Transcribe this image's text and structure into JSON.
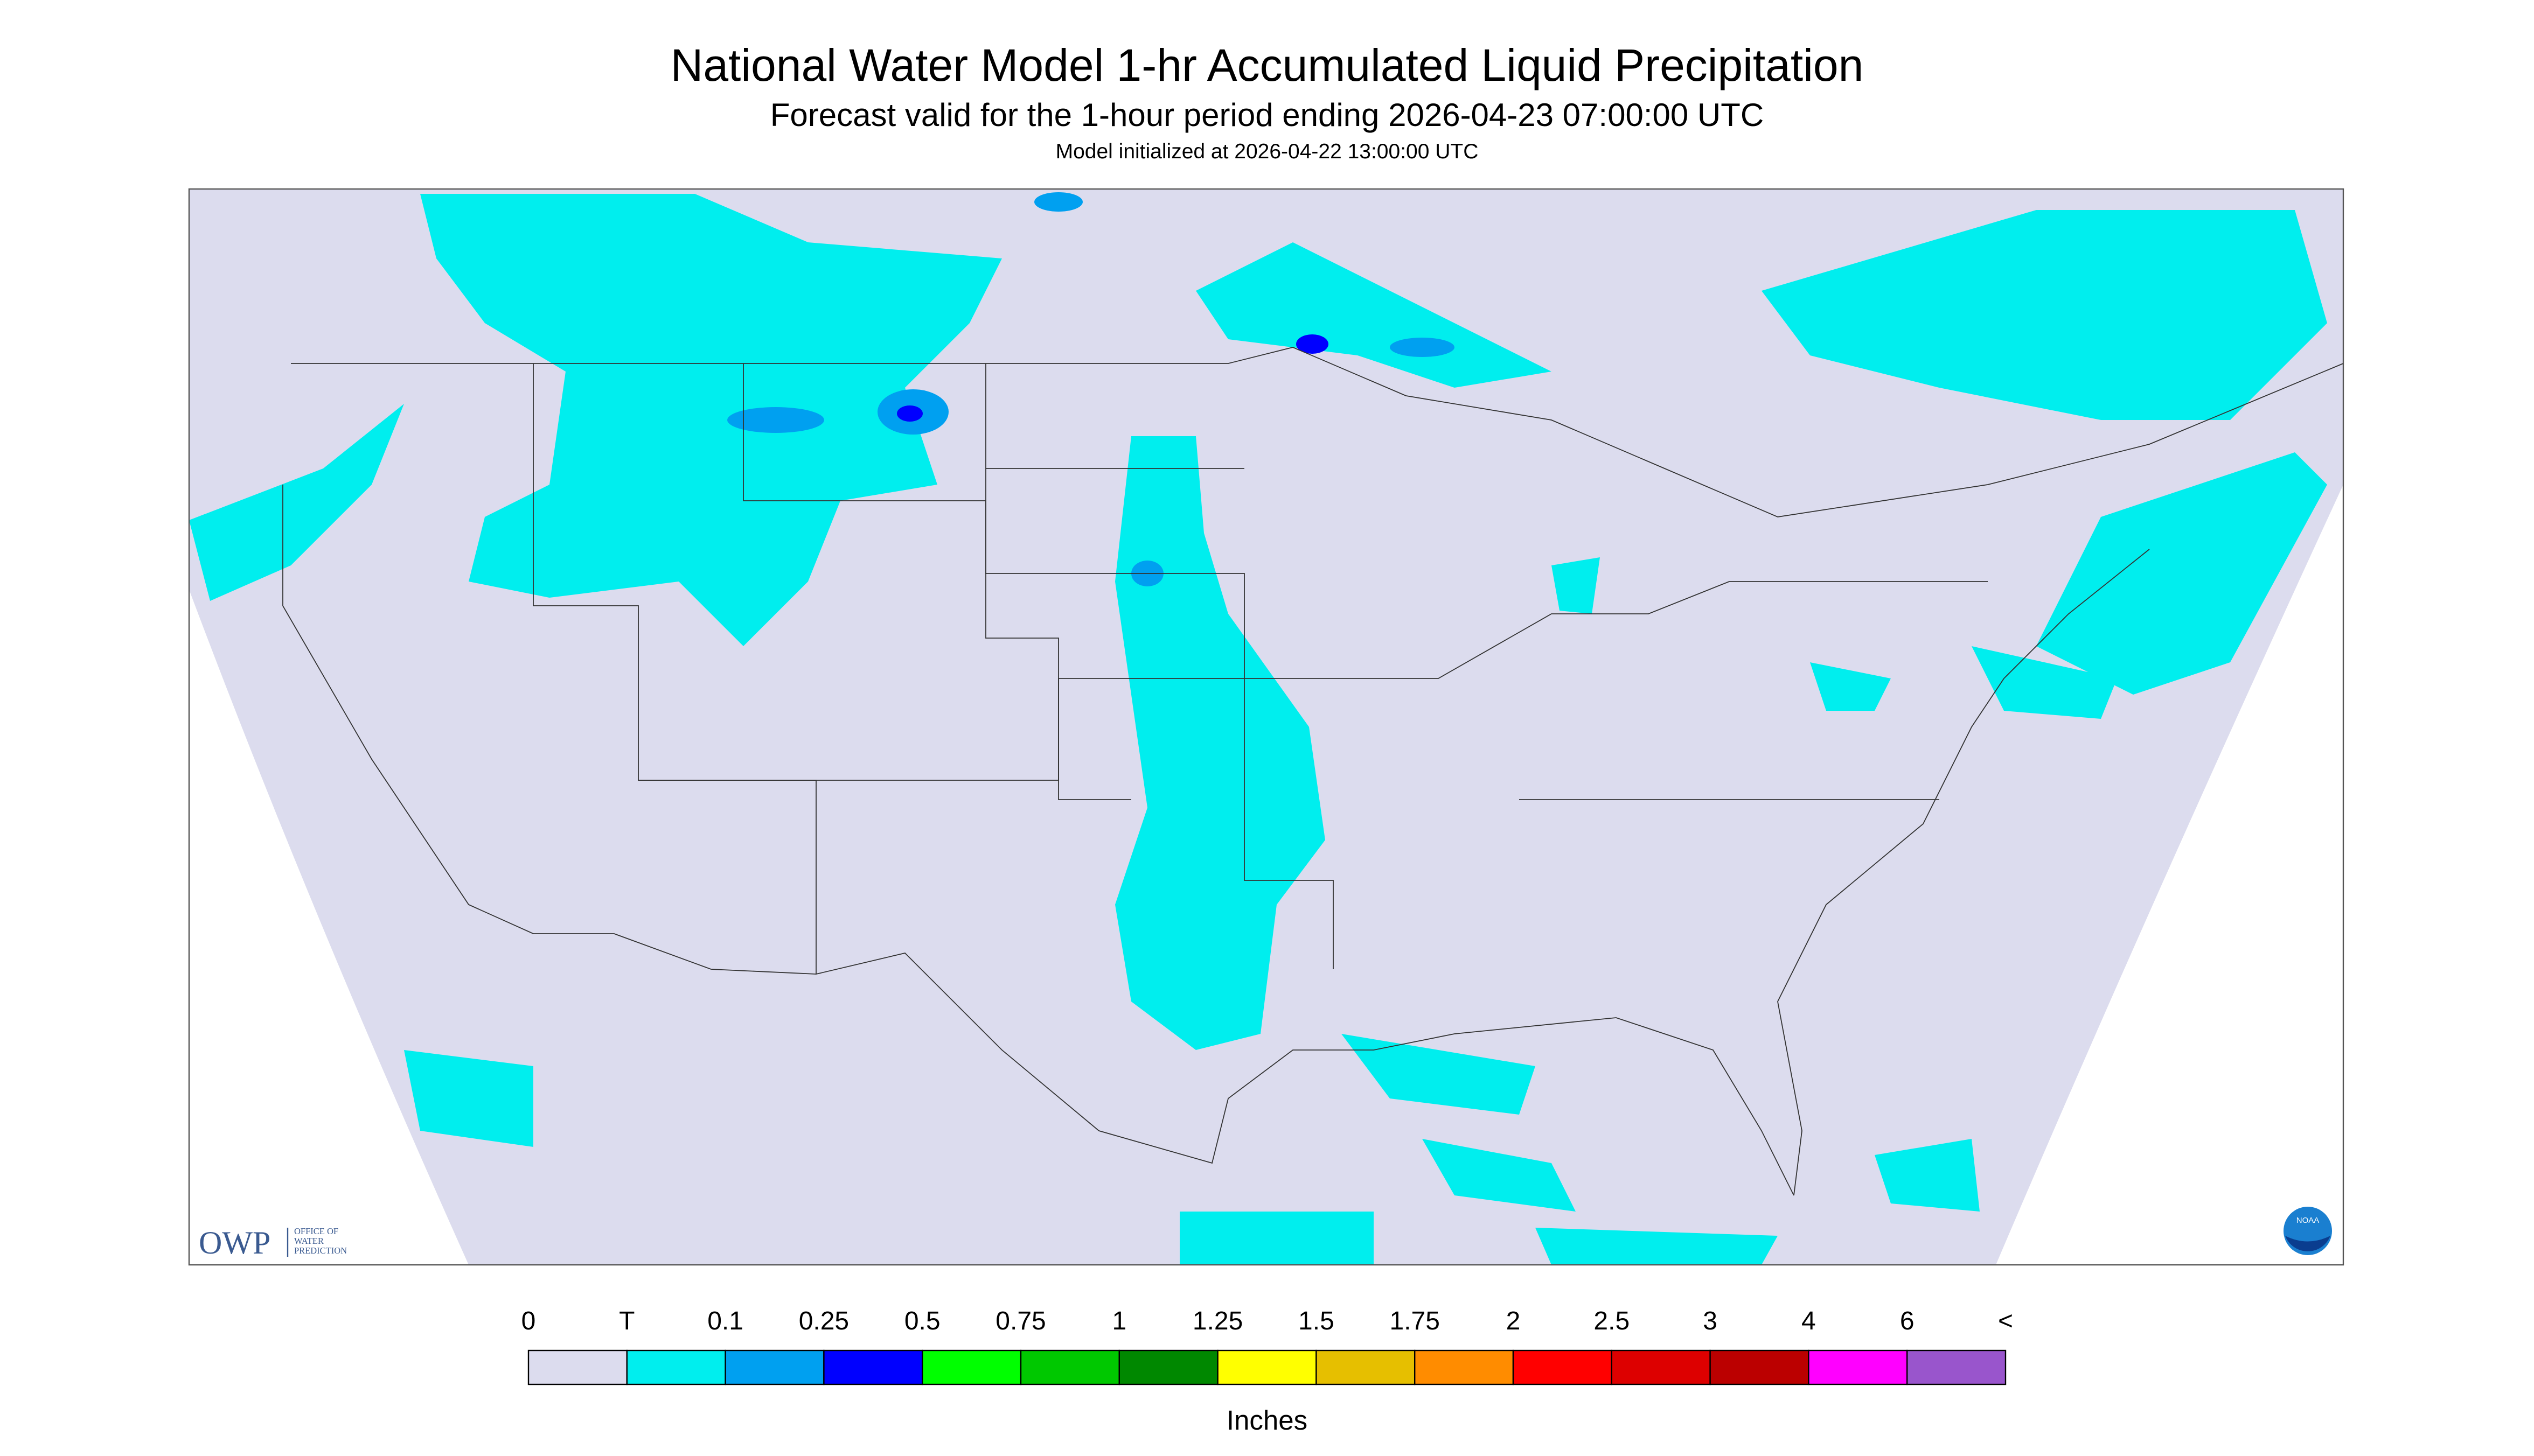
{
  "header": {
    "title": "National Water Model 1-hr Accumulated Liquid Precipitation",
    "subtitle": "Forecast valid for the 1-hour period ending 2026-04-23 07:00:00 UTC",
    "initialized": "Model initialized at 2026-04-22 13:00:00 UTC"
  },
  "legend": {
    "labels": [
      "0",
      "T",
      "0.1",
      "0.25",
      "0.5",
      "0.75",
      "1",
      "1.25",
      "1.5",
      "1.75",
      "2",
      "2.5",
      "3",
      "4",
      "6",
      "<"
    ],
    "colors": [
      "#dcdcee",
      "#00eeee",
      "#00a0f0",
      "#0000ff",
      "#00ff00",
      "#00c800",
      "#008800",
      "#ffff00",
      "#e6bf00",
      "#ff8c00",
      "#ff0000",
      "#dd0000",
      "#bb0000",
      "#ff00ff",
      "#9955cc"
    ],
    "units": "Inches"
  },
  "logo": {
    "text": "OWP",
    "subtext": [
      "OFFICE OF",
      "WATER",
      "PREDICTION"
    ],
    "badge": "NOAA"
  }
}
